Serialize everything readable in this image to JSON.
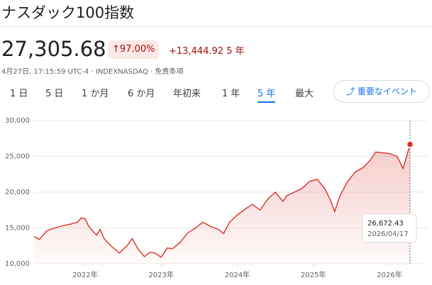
{
  "header": {
    "title": "ナスダック100指数"
  },
  "quote": {
    "price": "27,305.68",
    "change_pct": "97.00%",
    "change": "+13,444.92",
    "period": "5 年",
    "meta": "4月27日, 17:15:59 UTC-4 · INDEXNASDAQ · 免責条項"
  },
  "tabs": {
    "items": [
      "1 日",
      "5 日",
      "1 か月",
      "6 か月",
      "年初来",
      "1 年",
      "5 年",
      "最大"
    ],
    "active": 6
  },
  "events_button": "重要なイベント",
  "chart_data": {
    "type": "line",
    "xlim": [
      2021.33,
      2026.27
    ],
    "ylim": [
      10000,
      30000
    ],
    "xticks": [
      {
        "value": 2022,
        "label": "2022年"
      },
      {
        "value": 2023,
        "label": "2023年"
      },
      {
        "value": 2024,
        "label": "2024年"
      },
      {
        "value": 2025,
        "label": "2025年"
      },
      {
        "value": 2026,
        "label": "2026年"
      }
    ],
    "yticks": [
      {
        "value": 10000,
        "label": "10,000"
      },
      {
        "value": 15000,
        "label": "15,000"
      },
      {
        "value": 20000,
        "label": "20,000"
      },
      {
        "value": 25000,
        "label": "25,000"
      },
      {
        "value": 30000,
        "label": "30,000"
      }
    ],
    "grid": true,
    "series": [
      {
        "color": "#d93025",
        "x": [
          2021.33,
          2021.4,
          2021.5,
          2021.6,
          2021.7,
          2021.8,
          2021.9,
          2021.95,
          2022.0,
          2022.05,
          2022.15,
          2022.2,
          2022.25,
          2022.35,
          2022.45,
          2022.55,
          2022.62,
          2022.7,
          2022.78,
          2022.85,
          2022.92,
          2023.0,
          2023.08,
          2023.15,
          2023.25,
          2023.35,
          2023.45,
          2023.55,
          2023.65,
          2023.75,
          2023.82,
          2023.9,
          2024.0,
          2024.1,
          2024.2,
          2024.3,
          2024.4,
          2024.5,
          2024.6,
          2024.65,
          2024.75,
          2024.85,
          2024.95,
          2025.05,
          2025.15,
          2025.22,
          2025.28,
          2025.35,
          2025.45,
          2025.55,
          2025.65,
          2025.75,
          2025.82,
          2025.9,
          2026.0,
          2026.1,
          2026.18,
          2026.22,
          2026.27
        ],
        "values": [
          13800,
          13400,
          14600,
          15000,
          15300,
          15500,
          15800,
          16400,
          16300,
          15200,
          14000,
          14800,
          13500,
          12400,
          11500,
          12500,
          13500,
          12000,
          11000,
          11600,
          11500,
          10900,
          12200,
          12100,
          13000,
          14300,
          15000,
          15800,
          15200,
          14800,
          14200,
          15800,
          16800,
          17600,
          18300,
          17500,
          19000,
          20000,
          18700,
          19500,
          20000,
          20500,
          21500,
          21800,
          20500,
          19000,
          17300,
          19500,
          21500,
          22800,
          23400,
          24500,
          25600,
          25500,
          25400,
          25000,
          23300,
          24800,
          26672.43
        ]
      }
    ],
    "tooltip": {
      "label": "26,672.43",
      "date": "2026/04/17"
    }
  }
}
